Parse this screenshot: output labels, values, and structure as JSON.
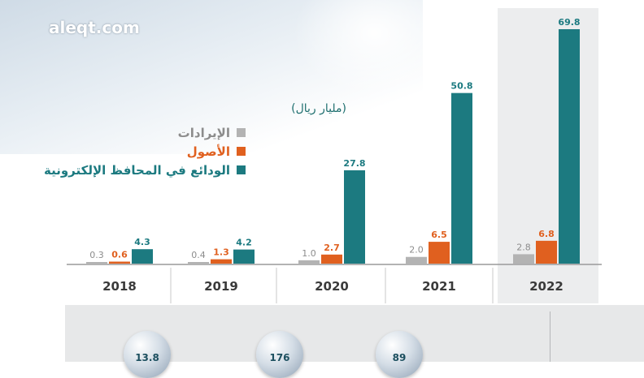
{
  "site": {
    "logo_text": "aleqt.com"
  },
  "chart_data": {
    "type": "bar",
    "title": "",
    "unit_label": "(مليار ريال)",
    "xlabel": "",
    "ylabel": "",
    "categories": [
      "2018",
      "2019",
      "2020",
      "2021",
      "2022"
    ],
    "series": [
      {
        "name": "الإيرادات",
        "color": "#b3b3b3",
        "values": [
          0.3,
          0.4,
          1.0,
          2.0,
          2.8
        ],
        "labels": [
          "0.3",
          "0.4",
          "1.0",
          "2.0",
          "2.8"
        ]
      },
      {
        "name": "الأصول",
        "color": "#e0601f",
        "values": [
          0.6,
          1.3,
          2.7,
          6.5,
          6.8
        ],
        "labels": [
          "0.6",
          "1.3",
          "2.7",
          "6.5",
          "6.8"
        ]
      },
      {
        "name": "الودائع في المحافظ الإلكترونية",
        "color": "#1c7a80",
        "values": [
          4.3,
          4.2,
          27.8,
          50.8,
          69.8
        ],
        "labels": [
          "4.3",
          "4.2",
          "27.8",
          "50.8",
          "69.8"
        ]
      }
    ],
    "legend_position": "upper-left",
    "highlighted_category": "2022",
    "grid": false
  },
  "footer_stats": [
    {
      "value": "13.8"
    },
    {
      "value": "176"
    },
    {
      "value": "89"
    }
  ],
  "colors": {
    "teal": "#1c7a80",
    "orange": "#e0601f",
    "gray": "#b3b3b3",
    "year_text": "#3a3a3a",
    "panel": "#ecedee"
  }
}
